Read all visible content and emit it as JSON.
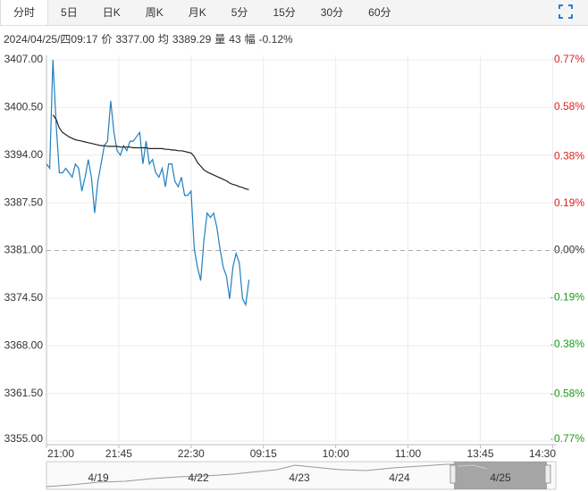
{
  "tabs": [
    "分时",
    "5日",
    "日K",
    "周K",
    "月K",
    "5分",
    "15分",
    "30分",
    "60分"
  ],
  "active_tab": 0,
  "info": {
    "time": "2024/04/25/四09:17",
    "price_label": "价",
    "price": "3377.00",
    "avg_label": "均",
    "avg": "3389.29",
    "volume_label": "量",
    "volume": "43",
    "change_label": "幅",
    "change": "-0.12%"
  },
  "chart_data": {
    "type": "line",
    "x": [
      0,
      2,
      4,
      6,
      8,
      10,
      12,
      14,
      16,
      18,
      20,
      22,
      24,
      26,
      28,
      30,
      32,
      34,
      36,
      38,
      40,
      42,
      44,
      46,
      48,
      50,
      52,
      54,
      56,
      58,
      60,
      62,
      64,
      66,
      68,
      70,
      72,
      74,
      76,
      78,
      80,
      82,
      84,
      86,
      88,
      90,
      92,
      94,
      96,
      98,
      100,
      102,
      104,
      106,
      108,
      110,
      112,
      114,
      116,
      118,
      120,
      122,
      124,
      126
    ],
    "series": [
      {
        "color": "#1f7fc0",
        "values": [
          3392.8,
          3392.2,
          3407.0,
          3398.3,
          3391.6,
          3391.6,
          3392.2,
          3391.6,
          3391.0,
          3392.8,
          3392.2,
          3389.1,
          3391.0,
          3393.4,
          3391.0,
          3386.1,
          3390.4,
          3392.8,
          3395.3,
          3395.9,
          3401.4,
          3397.1,
          3394.6,
          3394.0,
          3395.3,
          3394.6,
          3395.9,
          3395.9,
          3396.5,
          3397.1,
          3392.8,
          3395.9,
          3392.8,
          3393.4,
          3391.6,
          3391.0,
          3392.2,
          3389.7,
          3392.8,
          3392.8,
          3390.4,
          3389.7,
          3391.0,
          3388.5,
          3388.5,
          3389.1,
          3381.2,
          3378.7,
          3376.9,
          3382.4,
          3386.1,
          3385.5,
          3386.1,
          3384.2,
          3381.2,
          3378.7,
          3377.5,
          3374.4,
          3378.7,
          3380.6,
          3379.3,
          3374.4,
          3373.6,
          3377.0
        ]
      },
      {
        "color": "#222222",
        "values": [
          null,
          null,
          3399.5,
          3398.9,
          3397.7,
          3397.1,
          3396.8,
          3396.5,
          3396.3,
          3396.1,
          3396.0,
          3395.9,
          3395.8,
          3395.7,
          3395.6,
          3395.5,
          3395.4,
          3395.3,
          3395.3,
          3395.2,
          3395.2,
          3395.2,
          3395.2,
          3395.1,
          3395.1,
          3395.1,
          3395.1,
          3395.0,
          3395.0,
          3395.0,
          3395.0,
          3395.0,
          3394.9,
          3394.9,
          3394.9,
          3394.9,
          3394.9,
          3394.8,
          3394.8,
          3394.7,
          3394.7,
          3394.6,
          3394.6,
          3394.5,
          3394.4,
          3394.3,
          3393.8,
          3393.0,
          3392.5,
          3392.0,
          3391.7,
          3391.5,
          3391.3,
          3391.1,
          3390.9,
          3390.7,
          3390.5,
          3390.2,
          3390.0,
          3389.9,
          3389.7,
          3389.6,
          3389.4,
          3389.3
        ]
      }
    ],
    "xlim": [
      0,
      317
    ],
    "xticks": [
      {
        "value": 0,
        "label": "21:00"
      },
      {
        "value": 45,
        "label": "21:45"
      },
      {
        "value": 90,
        "label": "22:30"
      },
      {
        "value": 135,
        "label": "09:15"
      },
      {
        "value": 180,
        "label": "10:00"
      },
      {
        "value": 225,
        "label": "11:00"
      },
      {
        "value": 270,
        "label": "13:45"
      },
      {
        "value": 315,
        "label": "14:30"
      }
    ],
    "ylim": [
      3355,
      3407
    ],
    "yticks": [
      {
        "value": 3407,
        "label": "3407.00"
      },
      {
        "value": 3400.5,
        "label": "3400.50"
      },
      {
        "value": 3394,
        "label": "3394.00"
      },
      {
        "value": 3387.5,
        "label": "3387.50"
      },
      {
        "value": 3381,
        "label": "3381.00"
      },
      {
        "value": 3374.5,
        "label": "3374.50"
      },
      {
        "value": 3368,
        "label": "3368.00"
      },
      {
        "value": 3361.5,
        "label": "3361.50"
      },
      {
        "value": 3355,
        "label": "3355.00"
      }
    ],
    "y2lim": [
      -0.77,
      0.77
    ],
    "y2ticks": [
      {
        "value": 0.77,
        "label": "0.77%"
      },
      {
        "value": 0.58,
        "label": "0.58%"
      },
      {
        "value": 0.38,
        "label": "0.38%"
      },
      {
        "value": 0.19,
        "label": "0.19%"
      },
      {
        "value": 0,
        "label": "0.00%"
      },
      {
        "value": -0.19,
        "label": "-0.19%"
      },
      {
        "value": -0.38,
        "label": "-0.38%"
      },
      {
        "value": -0.58,
        "label": "-0.58%"
      },
      {
        "value": -0.77,
        "label": "-0.77%"
      }
    ],
    "reference": 3381,
    "up_color": "#e02020",
    "down_color": "#1a9a1a",
    "grid": true
  },
  "navigator": {
    "labels": [
      "4/19",
      "4/22",
      "4/23",
      "4/24",
      "4/25"
    ]
  }
}
